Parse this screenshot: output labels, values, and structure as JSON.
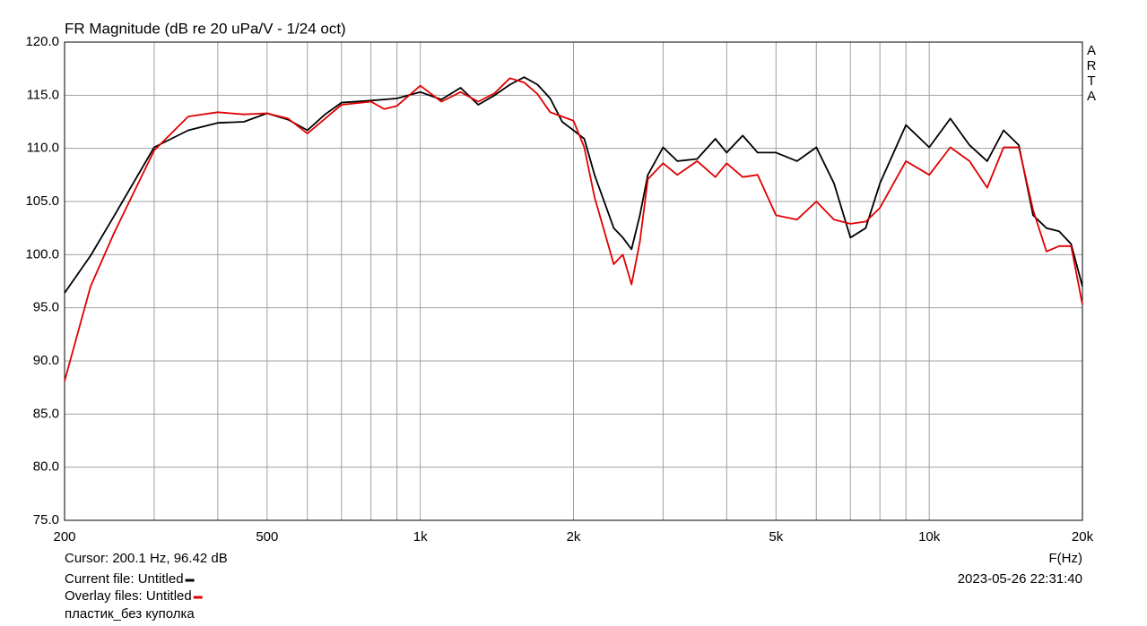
{
  "chart_data": {
    "type": "line",
    "title": "FR Magnitude (dB re 20 uPa/V - 1/24 oct)",
    "x_label": "F(Hz)",
    "watermark": "ARTA",
    "cursor": "Cursor: 200.1 Hz, 96.42 dB",
    "timestamp": "2023-05-26  22:31:40",
    "note": "пластик_без куполка",
    "log_x": true,
    "grid": true,
    "xlim": [
      200,
      20000
    ],
    "ylim": [
      75,
      120
    ],
    "xticks": [
      200,
      500,
      {
        "value": 1000,
        "label": "1k"
      },
      {
        "value": 2000,
        "label": "2k"
      },
      {
        "value": 5000,
        "label": "5k"
      },
      {
        "value": 10000,
        "label": "10k"
      },
      {
        "value": 20000,
        "label": "20k"
      }
    ],
    "xminor_ticks": [
      300,
      400,
      600,
      700,
      800,
      900,
      3000,
      4000,
      6000,
      7000,
      8000,
      9000
    ],
    "yticks": [
      {
        "value": 75,
        "label": "75.0"
      },
      {
        "value": 80,
        "label": "80.0"
      },
      {
        "value": 85,
        "label": "85.0"
      },
      {
        "value": 90,
        "label": "90.0"
      },
      {
        "value": 95,
        "label": "95.0"
      },
      {
        "value": 100,
        "label": "100.0"
      },
      {
        "value": 105,
        "label": "105.0"
      },
      {
        "value": 110,
        "label": "110.0"
      },
      {
        "value": 115,
        "label": "115.0"
      },
      {
        "value": 120,
        "label": "120.0"
      }
    ],
    "series": [
      {
        "name": "Current file: Untitled",
        "color": "#000000",
        "x": [
          200,
          225,
          250,
          300,
          350,
          400,
          450,
          500,
          550,
          600,
          650,
          700,
          800,
          900,
          1000,
          1100,
          1200,
          1300,
          1400,
          1500,
          1600,
          1700,
          1800,
          1900,
          2000,
          2100,
          2200,
          2400,
          2500,
          2600,
          2700,
          2800,
          3000,
          3200,
          3500,
          3800,
          4000,
          4300,
          4600,
          5000,
          5500,
          6000,
          6500,
          7000,
          7500,
          8000,
          9000,
          10000,
          11000,
          12000,
          13000,
          14000,
          15000,
          16000,
          17000,
          18000,
          19000,
          20000
        ],
        "values": [
          96.4,
          99.9,
          103.6,
          110.1,
          111.7,
          112.4,
          112.5,
          113.3,
          112.7,
          111.7,
          113.2,
          114.3,
          114.5,
          114.7,
          115.3,
          114.6,
          115.7,
          114.1,
          115.0,
          116.0,
          116.7,
          116.0,
          114.7,
          112.5,
          111.7,
          110.9,
          107.5,
          102.5,
          101.6,
          100.5,
          103.7,
          107.5,
          110.1,
          108.8,
          109.0,
          110.9,
          109.6,
          111.2,
          109.6,
          109.6,
          108.8,
          110.1,
          106.7,
          101.6,
          102.5,
          106.7,
          112.2,
          110.1,
          112.8,
          110.3,
          108.8,
          111.7,
          110.3,
          103.7,
          102.5,
          102.2,
          101.0,
          97.0
        ]
      },
      {
        "name": "Overlay files: Untitled",
        "color": "#e00000",
        "x": [
          200,
          225,
          250,
          300,
          350,
          400,
          450,
          500,
          550,
          600,
          700,
          800,
          850,
          900,
          1000,
          1100,
          1200,
          1300,
          1400,
          1500,
          1600,
          1700,
          1800,
          1900,
          2000,
          2100,
          2200,
          2400,
          2500,
          2600,
          2700,
          2800,
          3000,
          3200,
          3500,
          3800,
          4000,
          4300,
          4600,
          5000,
          5500,
          6000,
          6500,
          7000,
          7500,
          8000,
          9000,
          10000,
          11000,
          12000,
          13000,
          14000,
          15000,
          16000,
          17000,
          18000,
          19000,
          20000
        ],
        "values": [
          88.1,
          97.0,
          102.0,
          109.8,
          113.0,
          113.4,
          113.2,
          113.3,
          112.8,
          111.4,
          114.1,
          114.4,
          113.7,
          114.0,
          115.9,
          114.4,
          115.3,
          114.4,
          115.2,
          116.6,
          116.2,
          115.1,
          113.4,
          113.0,
          112.6,
          110.1,
          105.4,
          99.1,
          100.0,
          97.2,
          101.2,
          107.1,
          108.6,
          107.5,
          108.8,
          107.3,
          108.6,
          107.3,
          107.5,
          103.7,
          103.3,
          105.0,
          103.3,
          102.9,
          103.1,
          104.4,
          108.8,
          107.5,
          110.1,
          108.8,
          106.3,
          110.1,
          110.1,
          104.2,
          100.3,
          100.8,
          100.8,
          95.3
        ]
      }
    ]
  }
}
